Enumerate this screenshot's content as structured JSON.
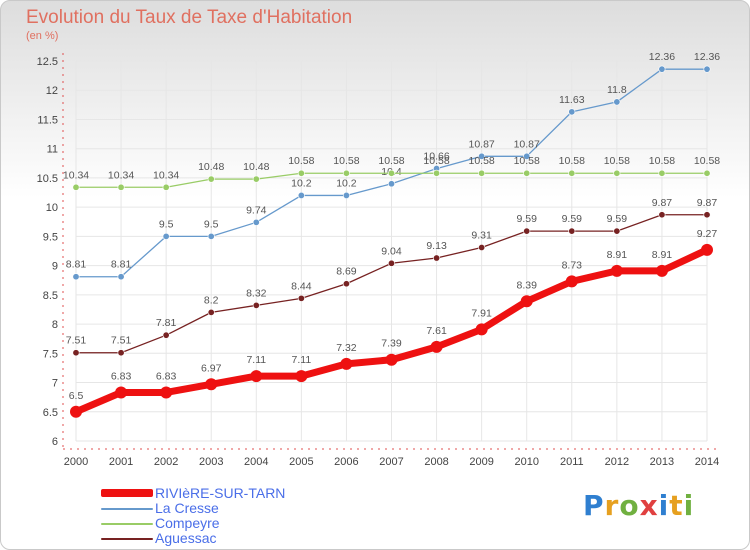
{
  "logo_text": "Proxiti",
  "chart_data": {
    "type": "line",
    "title": "Evolution du Taux de Taxe d'Habitation",
    "xlabel": "",
    "ylabel": "(en %)",
    "x": [
      "2000",
      "2001",
      "2002",
      "2003",
      "2004",
      "2005",
      "2006",
      "2007",
      "2008",
      "2009",
      "2010",
      "2011",
      "2012",
      "2013",
      "2014"
    ],
    "ylim": [
      6,
      12.5
    ],
    "yticks": [
      "6",
      "6.5",
      "7",
      "7.5",
      "8",
      "8.5",
      "9",
      "9.5",
      "10",
      "10.5",
      "11",
      "11.5",
      "12",
      "12.5"
    ],
    "grid": true,
    "legend_position": "bottom-left",
    "series": [
      {
        "name": "RIVIèRE-SUR-TARN",
        "color": "#ee1111",
        "values": [
          6.5,
          6.83,
          6.83,
          6.97,
          7.11,
          7.11,
          7.32,
          7.39,
          7.61,
          7.91,
          8.39,
          8.73,
          8.91,
          8.91,
          9.27
        ]
      },
      {
        "name": "La Cresse",
        "color": "#6699cc",
        "values": [
          8.81,
          8.81,
          9.5,
          9.5,
          9.74,
          10.2,
          10.2,
          10.4,
          10.66,
          10.87,
          10.87,
          11.63,
          11.8,
          12.36,
          12.36
        ]
      },
      {
        "name": "Compeyre",
        "color": "#99cc66",
        "values": [
          10.34,
          10.34,
          10.34,
          10.48,
          10.48,
          10.58,
          10.58,
          10.58,
          10.58,
          10.58,
          10.58,
          10.58,
          10.58,
          10.58,
          10.58
        ]
      },
      {
        "name": "Aguessac",
        "color": "#772222",
        "values": [
          7.51,
          7.51,
          7.81,
          8.2,
          8.32,
          8.44,
          8.69,
          9.04,
          9.13,
          9.31,
          9.59,
          9.59,
          9.59,
          9.87,
          9.87
        ]
      }
    ]
  }
}
